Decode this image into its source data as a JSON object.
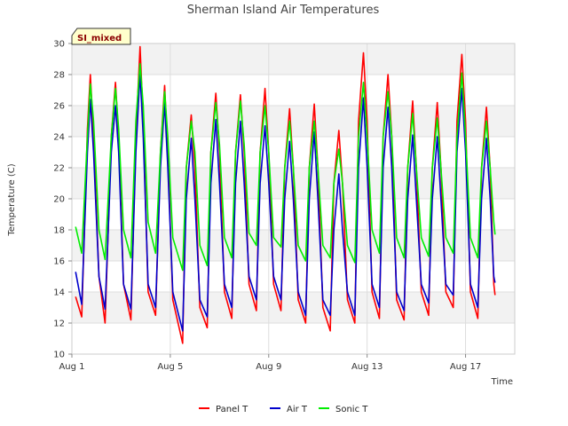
{
  "chart_data": {
    "type": "line",
    "title": "Sherman Island Air Temperatures",
    "xlabel": "Time",
    "ylabel": "Temperature (C)",
    "tag": "SI_mixed",
    "ylim": [
      10,
      30
    ],
    "xlim": [
      0,
      18
    ],
    "yticks": [
      10,
      12,
      14,
      16,
      18,
      20,
      22,
      24,
      26,
      28,
      30
    ],
    "xticks": [
      {
        "label": "Aug 1",
        "value": 0
      },
      {
        "label": "Aug 5",
        "value": 4
      },
      {
        "label": "Aug 9",
        "value": 8
      },
      {
        "label": "Aug 13",
        "value": 12
      },
      {
        "label": "Aug 17",
        "value": 16
      }
    ],
    "grid": true,
    "legend_position": "bottom",
    "series": [
      {
        "name": "Panel T",
        "color": "#ff0000",
        "points": [
          [
            0.15,
            13.7
          ],
          [
            0.4,
            12.4
          ],
          [
            0.63,
            24.5
          ],
          [
            0.75,
            28.0
          ],
          [
            0.88,
            24.0
          ],
          [
            1.1,
            15.0
          ],
          [
            1.35,
            12.0
          ],
          [
            1.6,
            24.0
          ],
          [
            1.77,
            27.5
          ],
          [
            1.9,
            24.0
          ],
          [
            2.1,
            14.5
          ],
          [
            2.4,
            12.2
          ],
          [
            2.6,
            24.0
          ],
          [
            2.77,
            29.8
          ],
          [
            2.9,
            25.0
          ],
          [
            3.1,
            14.0
          ],
          [
            3.4,
            12.5
          ],
          [
            3.6,
            23.0
          ],
          [
            3.77,
            27.3
          ],
          [
            3.9,
            23.0
          ],
          [
            4.1,
            13.5
          ],
          [
            4.5,
            10.7
          ],
          [
            4.65,
            22.0
          ],
          [
            4.85,
            25.4
          ],
          [
            5.0,
            22.0
          ],
          [
            5.2,
            13.0
          ],
          [
            5.5,
            11.7
          ],
          [
            5.65,
            23.0
          ],
          [
            5.85,
            26.8
          ],
          [
            6.0,
            23.0
          ],
          [
            6.2,
            14.0
          ],
          [
            6.5,
            12.3
          ],
          [
            6.65,
            23.0
          ],
          [
            6.85,
            26.7
          ],
          [
            7.0,
            23.0
          ],
          [
            7.2,
            14.5
          ],
          [
            7.5,
            12.8
          ],
          [
            7.65,
            23.0
          ],
          [
            7.85,
            27.1
          ],
          [
            8.0,
            23.0
          ],
          [
            8.2,
            14.5
          ],
          [
            8.5,
            12.8
          ],
          [
            8.65,
            22.0
          ],
          [
            8.85,
            25.8
          ],
          [
            9.0,
            22.0
          ],
          [
            9.2,
            13.5
          ],
          [
            9.5,
            12.0
          ],
          [
            9.65,
            22.0
          ],
          [
            9.85,
            26.1
          ],
          [
            10.0,
            22.0
          ],
          [
            10.2,
            13.0
          ],
          [
            10.5,
            11.5
          ],
          [
            10.65,
            21.0
          ],
          [
            10.85,
            24.4
          ],
          [
            11.0,
            21.0
          ],
          [
            11.2,
            13.5
          ],
          [
            11.5,
            12.0
          ],
          [
            11.65,
            25.0
          ],
          [
            11.85,
            29.4
          ],
          [
            12.0,
            25.0
          ],
          [
            12.2,
            14.0
          ],
          [
            12.5,
            12.3
          ],
          [
            12.65,
            24.0
          ],
          [
            12.85,
            28.0
          ],
          [
            13.0,
            24.0
          ],
          [
            13.2,
            13.5
          ],
          [
            13.5,
            12.2
          ],
          [
            13.65,
            22.0
          ],
          [
            13.85,
            26.3
          ],
          [
            14.0,
            22.0
          ],
          [
            14.2,
            14.0
          ],
          [
            14.5,
            12.5
          ],
          [
            14.65,
            22.0
          ],
          [
            14.85,
            26.2
          ],
          [
            15.0,
            22.0
          ],
          [
            15.2,
            14.0
          ],
          [
            15.5,
            13.0
          ],
          [
            15.65,
            25.0
          ],
          [
            15.85,
            29.3
          ],
          [
            16.0,
            25.0
          ],
          [
            16.2,
            14.0
          ],
          [
            16.5,
            12.3
          ],
          [
            16.65,
            22.0
          ],
          [
            16.85,
            25.9
          ],
          [
            17.0,
            22.0
          ],
          [
            17.15,
            14.5
          ],
          [
            17.2,
            13.8
          ]
        ]
      },
      {
        "name": "Air T",
        "color": "#0000cc",
        "points": [
          [
            0.15,
            15.3
          ],
          [
            0.4,
            13.2
          ],
          [
            0.63,
            23.0
          ],
          [
            0.75,
            26.4
          ],
          [
            0.88,
            23.0
          ],
          [
            1.1,
            15.0
          ],
          [
            1.35,
            12.9
          ],
          [
            1.6,
            23.0
          ],
          [
            1.77,
            26.0
          ],
          [
            1.9,
            23.0
          ],
          [
            2.1,
            14.5
          ],
          [
            2.4,
            12.9
          ],
          [
            2.6,
            23.0
          ],
          [
            2.77,
            28.1
          ],
          [
            2.9,
            24.0
          ],
          [
            3.1,
            14.5
          ],
          [
            3.4,
            13.0
          ],
          [
            3.6,
            22.0
          ],
          [
            3.77,
            26.2
          ],
          [
            3.9,
            22.0
          ],
          [
            4.1,
            14.0
          ],
          [
            4.5,
            11.5
          ],
          [
            4.65,
            20.0
          ],
          [
            4.85,
            23.9
          ],
          [
            5.0,
            20.0
          ],
          [
            5.2,
            13.5
          ],
          [
            5.5,
            12.4
          ],
          [
            5.65,
            21.0
          ],
          [
            5.85,
            25.1
          ],
          [
            6.0,
            21.0
          ],
          [
            6.2,
            14.5
          ],
          [
            6.5,
            13.0
          ],
          [
            6.65,
            21.0
          ],
          [
            6.85,
            25.0
          ],
          [
            7.0,
            21.0
          ],
          [
            7.2,
            15.0
          ],
          [
            7.5,
            13.5
          ],
          [
            7.65,
            21.0
          ],
          [
            7.85,
            24.7
          ],
          [
            8.0,
            21.0
          ],
          [
            8.2,
            15.0
          ],
          [
            8.5,
            13.5
          ],
          [
            8.65,
            20.0
          ],
          [
            8.85,
            23.7
          ],
          [
            9.0,
            20.0
          ],
          [
            9.2,
            14.0
          ],
          [
            9.5,
            12.5
          ],
          [
            9.65,
            20.0
          ],
          [
            9.85,
            24.3
          ],
          [
            10.0,
            20.0
          ],
          [
            10.2,
            13.5
          ],
          [
            10.5,
            12.5
          ],
          [
            10.65,
            18.0
          ],
          [
            10.85,
            21.6
          ],
          [
            11.0,
            18.0
          ],
          [
            11.2,
            14.0
          ],
          [
            11.5,
            12.5
          ],
          [
            11.65,
            22.0
          ],
          [
            11.85,
            26.5
          ],
          [
            12.0,
            22.0
          ],
          [
            12.2,
            14.5
          ],
          [
            12.5,
            13.0
          ],
          [
            12.65,
            22.0
          ],
          [
            12.85,
            25.9
          ],
          [
            13.0,
            22.0
          ],
          [
            13.2,
            14.0
          ],
          [
            13.5,
            12.8
          ],
          [
            13.65,
            20.0
          ],
          [
            13.85,
            24.1
          ],
          [
            14.0,
            20.0
          ],
          [
            14.2,
            14.5
          ],
          [
            14.5,
            13.3
          ],
          [
            14.65,
            20.0
          ],
          [
            14.85,
            24.0
          ],
          [
            15.0,
            20.0
          ],
          [
            15.2,
            14.5
          ],
          [
            15.5,
            13.8
          ],
          [
            15.65,
            23.0
          ],
          [
            15.85,
            27.1
          ],
          [
            16.0,
            23.0
          ],
          [
            16.2,
            14.5
          ],
          [
            16.5,
            13.0
          ],
          [
            16.65,
            20.0
          ],
          [
            16.85,
            23.9
          ],
          [
            17.0,
            20.0
          ],
          [
            17.15,
            15.0
          ],
          [
            17.2,
            14.6
          ]
        ]
      },
      {
        "name": "Sonic T",
        "color": "#00ee00",
        "points": [
          [
            0.15,
            18.2
          ],
          [
            0.4,
            16.5
          ],
          [
            0.63,
            24.0
          ],
          [
            0.75,
            27.4
          ],
          [
            0.88,
            25.0
          ],
          [
            1.1,
            18.0
          ],
          [
            1.35,
            16.1
          ],
          [
            1.6,
            24.0
          ],
          [
            1.77,
            27.1
          ],
          [
            1.9,
            24.5
          ],
          [
            2.1,
            18.0
          ],
          [
            2.4,
            16.2
          ],
          [
            2.6,
            25.0
          ],
          [
            2.77,
            28.7
          ],
          [
            2.9,
            26.0
          ],
          [
            3.1,
            18.5
          ],
          [
            3.4,
            16.5
          ],
          [
            3.6,
            23.0
          ],
          [
            3.77,
            26.9
          ],
          [
            3.9,
            24.0
          ],
          [
            4.1,
            17.5
          ],
          [
            4.5,
            15.4
          ],
          [
            4.65,
            22.0
          ],
          [
            4.85,
            25.0
          ],
          [
            5.0,
            23.0
          ],
          [
            5.2,
            17.0
          ],
          [
            5.5,
            15.7
          ],
          [
            5.65,
            23.0
          ],
          [
            5.85,
            26.2
          ],
          [
            6.0,
            23.5
          ],
          [
            6.2,
            17.5
          ],
          [
            6.5,
            16.2
          ],
          [
            6.65,
            23.0
          ],
          [
            6.85,
            26.3
          ],
          [
            7.0,
            23.5
          ],
          [
            7.2,
            17.8
          ],
          [
            7.5,
            17.0
          ],
          [
            7.65,
            23.0
          ],
          [
            7.85,
            26.0
          ],
          [
            8.0,
            23.0
          ],
          [
            8.2,
            17.5
          ],
          [
            8.5,
            16.9
          ],
          [
            8.65,
            22.0
          ],
          [
            8.85,
            25.0
          ],
          [
            9.0,
            22.0
          ],
          [
            9.2,
            17.0
          ],
          [
            9.5,
            16.0
          ],
          [
            9.65,
            22.0
          ],
          [
            9.85,
            25.0
          ],
          [
            10.0,
            22.0
          ],
          [
            10.2,
            17.0
          ],
          [
            10.5,
            16.2
          ],
          [
            10.65,
            21.0
          ],
          [
            10.85,
            23.2
          ],
          [
            11.0,
            21.0
          ],
          [
            11.2,
            17.0
          ],
          [
            11.5,
            15.9
          ],
          [
            11.65,
            24.0
          ],
          [
            11.85,
            27.5
          ],
          [
            12.0,
            24.0
          ],
          [
            12.2,
            18.0
          ],
          [
            12.5,
            16.5
          ],
          [
            12.65,
            24.0
          ],
          [
            12.85,
            26.9
          ],
          [
            13.0,
            24.0
          ],
          [
            13.2,
            17.5
          ],
          [
            13.5,
            16.2
          ],
          [
            13.65,
            22.0
          ],
          [
            13.85,
            25.5
          ],
          [
            14.0,
            22.0
          ],
          [
            14.2,
            17.5
          ],
          [
            14.5,
            16.3
          ],
          [
            14.65,
            22.0
          ],
          [
            14.85,
            25.2
          ],
          [
            15.0,
            22.0
          ],
          [
            15.2,
            17.5
          ],
          [
            15.5,
            16.5
          ],
          [
            15.65,
            24.0
          ],
          [
            15.85,
            28.1
          ],
          [
            16.0,
            24.0
          ],
          [
            16.2,
            17.5
          ],
          [
            16.5,
            16.2
          ],
          [
            16.65,
            22.0
          ],
          [
            16.85,
            25.0
          ],
          [
            17.0,
            22.0
          ],
          [
            17.15,
            18.5
          ],
          [
            17.2,
            17.7
          ]
        ]
      }
    ]
  }
}
